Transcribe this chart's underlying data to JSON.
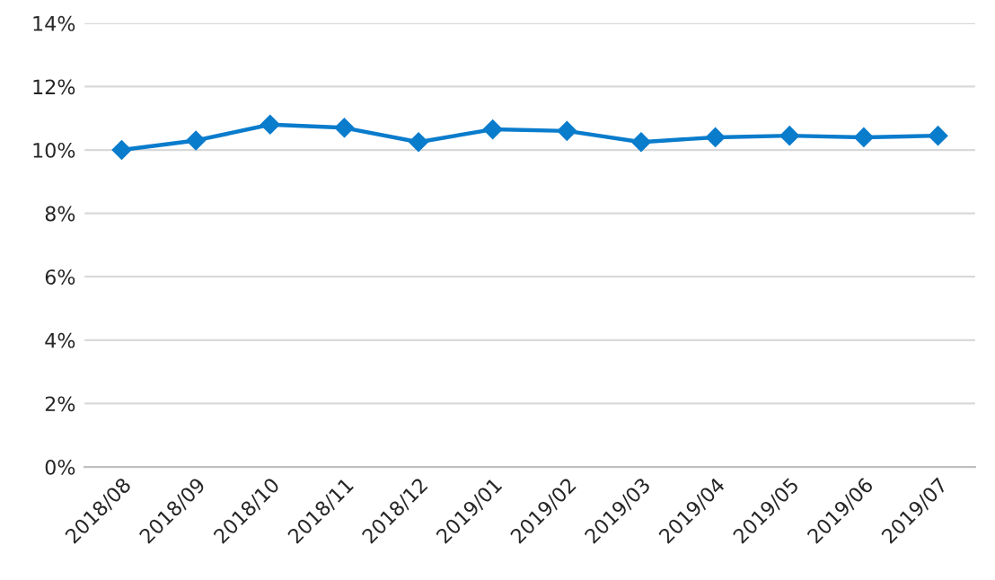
{
  "chart_data": {
    "type": "line",
    "categories": [
      "2018/08",
      "2018/09",
      "2018/10",
      "2018/11",
      "2018/12",
      "2019/01",
      "2019/02",
      "2019/03",
      "2019/04",
      "2019/05",
      "2019/06",
      "2019/07"
    ],
    "series": [
      {
        "color": "#0a7ccc",
        "values": [
          10.0,
          10.3,
          10.8,
          10.7,
          10.25,
          10.65,
          10.6,
          10.25,
          10.4,
          10.45,
          10.4,
          10.45
        ]
      }
    ],
    "ylim": [
      0,
      14
    ],
    "yticks": [
      {
        "value": 0,
        "label": "0%"
      },
      {
        "value": 2,
        "label": "2%"
      },
      {
        "value": 4,
        "label": "4%"
      },
      {
        "value": 6,
        "label": "6%"
      },
      {
        "value": 8,
        "label": "8%"
      },
      {
        "value": 10,
        "label": "10%"
      },
      {
        "value": 12,
        "label": "12%"
      },
      {
        "value": 14,
        "label": "14%"
      }
    ],
    "grid": "y",
    "marker": "diamond",
    "line_style": "solid",
    "legend": false
  }
}
